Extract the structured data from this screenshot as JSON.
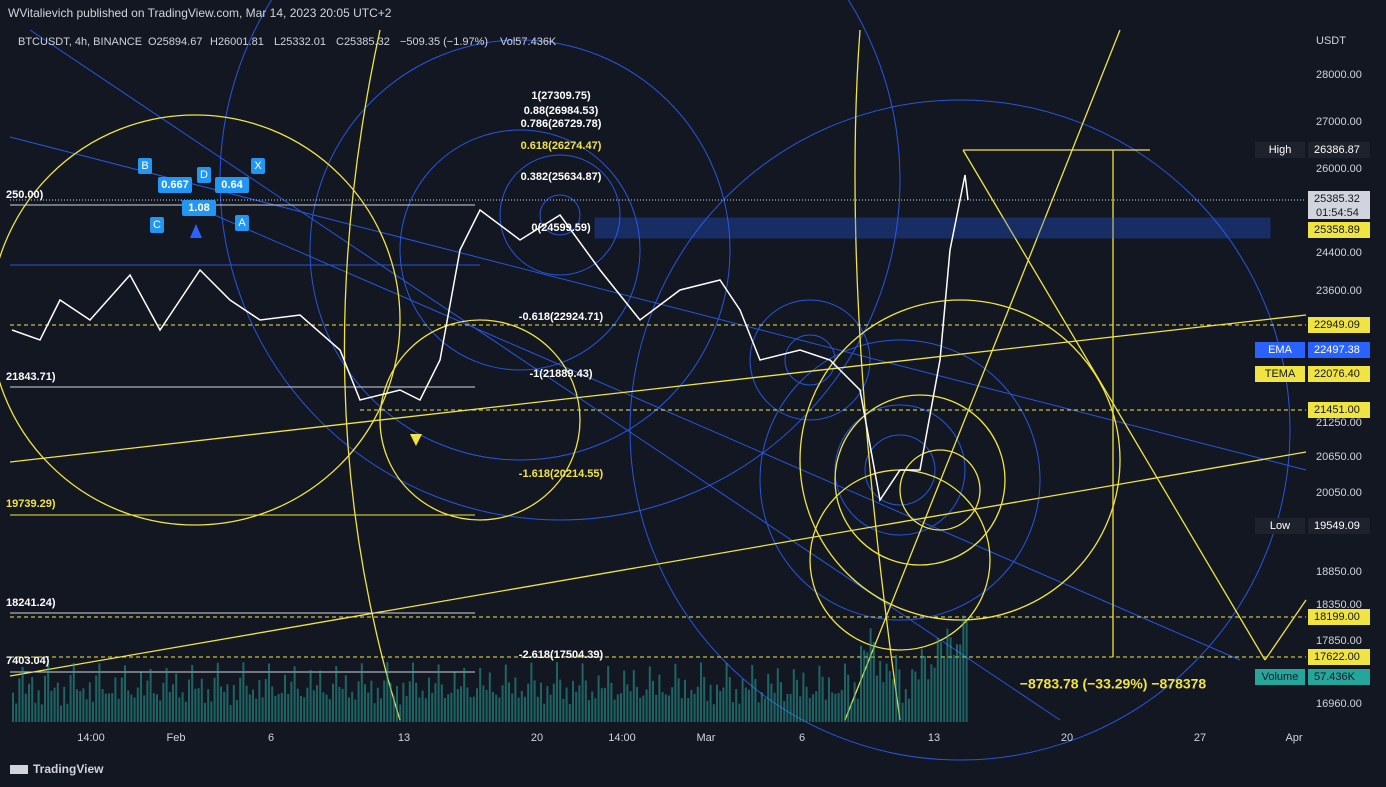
{
  "header": {
    "publisher": "WVitalievich published on TradingView.com, Mar 14, 2023 20:05 UTC+2"
  },
  "legend": {
    "symbol": "BTCUSDT, 4h, BINANCE",
    "open": "O25894.67",
    "high": "H26001.81",
    "low": "L25332.01",
    "close": "C25385.32",
    "change": "−509.35 (−1.97%)",
    "volume": "Vol57.436K"
  },
  "price_axis": {
    "currency": "USDT",
    "labels": [
      "28000.00",
      "27000.00",
      "26000.00",
      "24400.00",
      "23600.00",
      "21250.00",
      "20650.00",
      "20050.00",
      "18850.00",
      "18350.00",
      "17850.00",
      "16960.00"
    ]
  },
  "price_tags": [
    {
      "name": "High",
      "value": "26386.87"
    },
    {
      "value": "25385.32",
      "countdown": "01:54:54"
    },
    {
      "value": "25358.89"
    },
    {
      "value": "22949.09"
    },
    {
      "name": "EMA",
      "value": "22497.38"
    },
    {
      "name": "TEMA",
      "value": "22076.40"
    },
    {
      "value": "21451.00"
    },
    {
      "name": "Low",
      "value": "19549.09"
    },
    {
      "value": "18199.00"
    },
    {
      "value": "17622.00"
    },
    {
      "name": "Volume",
      "value": "57.436K"
    }
  ],
  "time_axis": [
    "14:00",
    "Feb",
    "6",
    "13",
    "20",
    "14:00",
    "Mar",
    "6",
    "13",
    "20",
    "27",
    "Apr"
  ],
  "fib_labels": [
    "1(27309.75)",
    "0.88(26984.53)",
    "0.786(26729.78)",
    "0.618(26274.47)",
    "0.382(25634.87)",
    "0(24599.59)",
    "-0.618(22924.71)",
    "-1(21889.43)",
    "-1.618(20214.55)",
    "-2.618(17504.39)"
  ],
  "left_labels": [
    "250.00)",
    "21843.71)",
    "19739.29)",
    "18241.24)",
    "7403.04)"
  ],
  "pattern": {
    "points": [
      "B",
      "D",
      "X",
      "C",
      "A"
    ],
    "ratios": [
      "0.667",
      "1.08",
      "0.64"
    ]
  },
  "measure": "−8783.78 (−33.29%) −878378",
  "footer": "TradingView"
}
